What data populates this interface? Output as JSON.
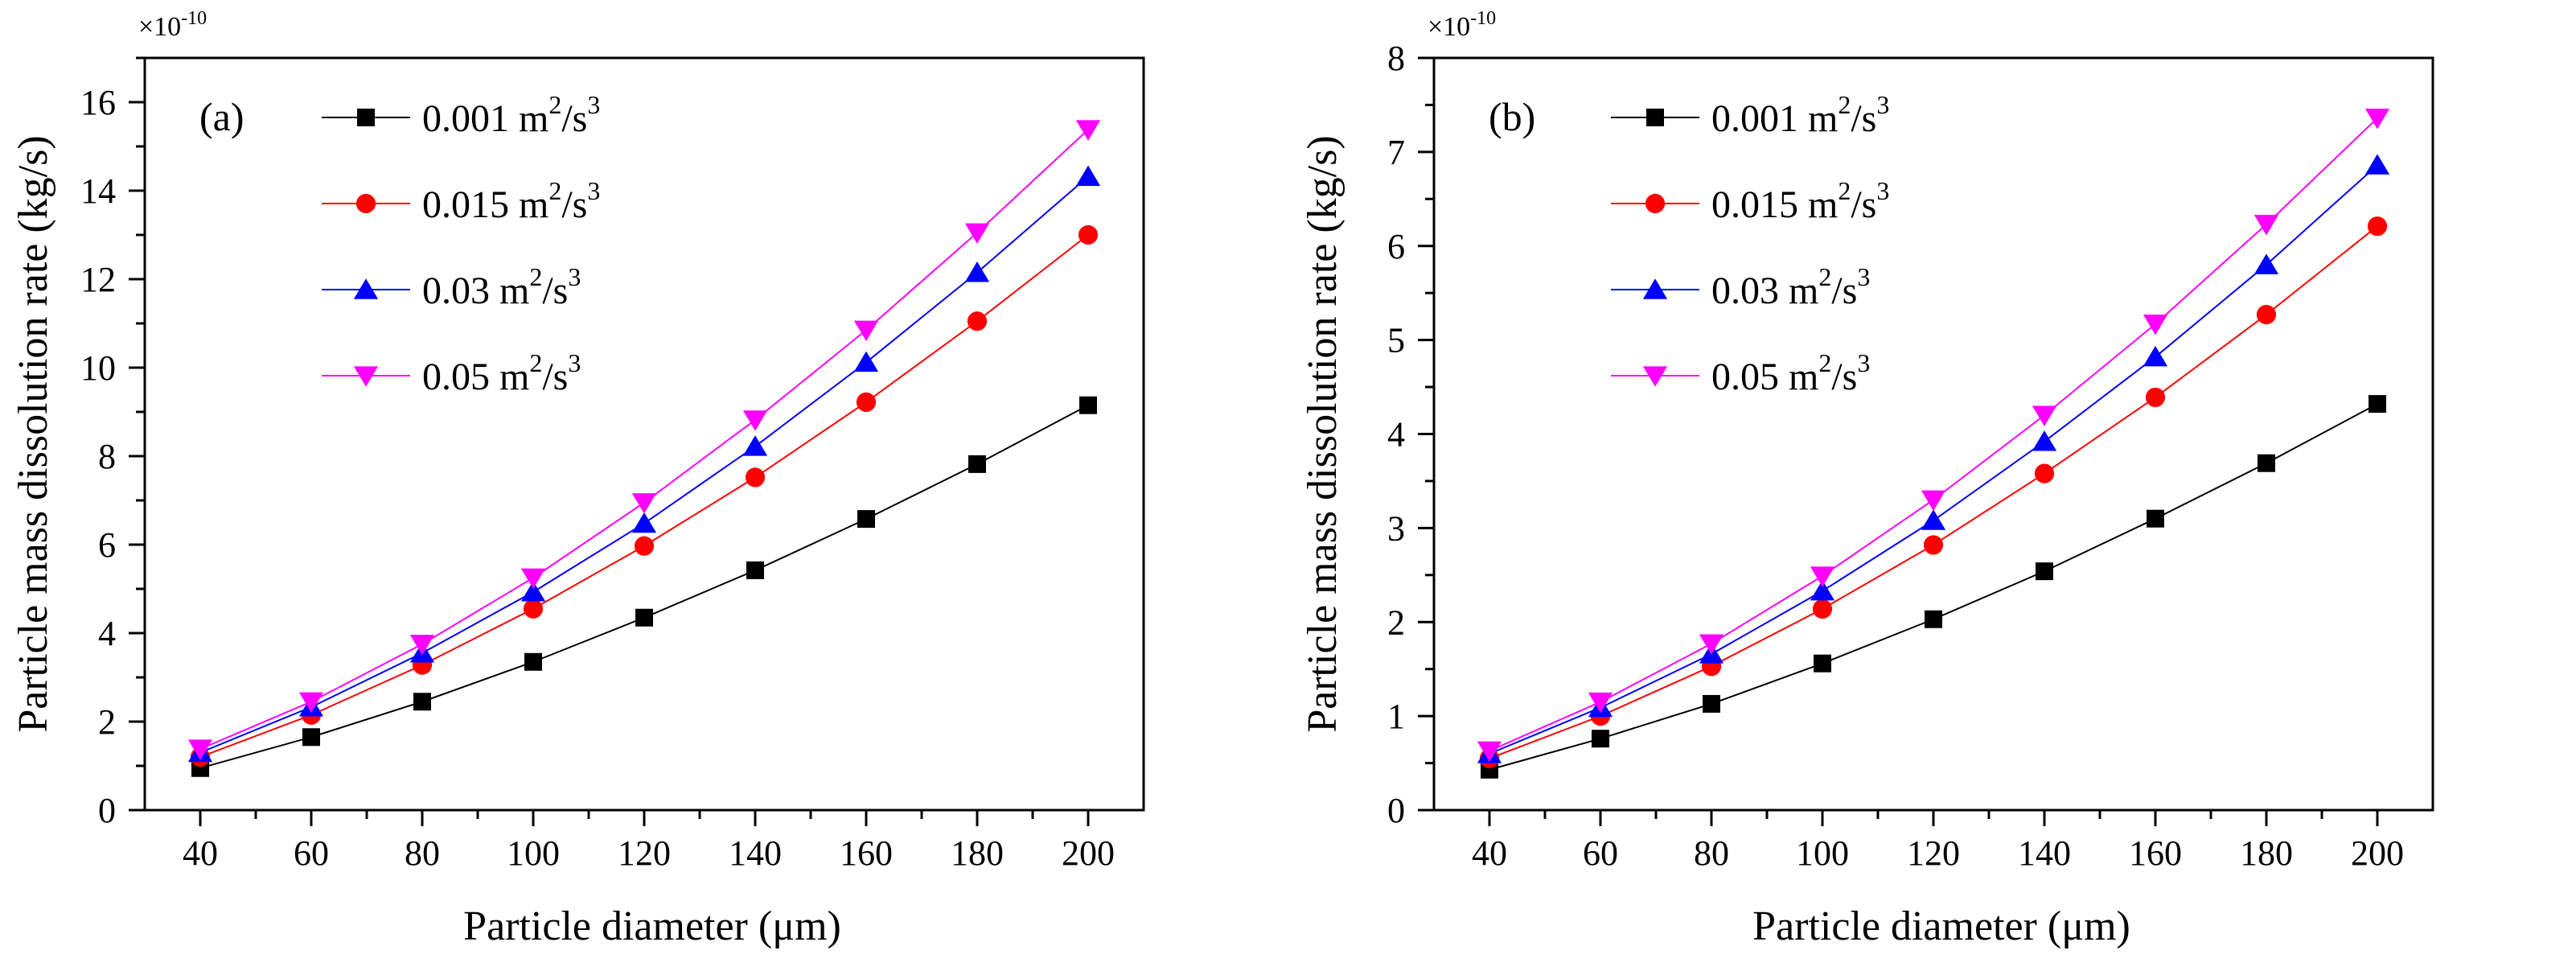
{
  "chart_data": [
    {
      "type": "line",
      "panel_label": "(a)",
      "xlabel": "Particle diameter (μm)",
      "ylabel": "Particle mass dissolution rate (kg/s)",
      "y_multiplier": "×10",
      "y_multiplier_exp": "-10",
      "x": [
        40,
        60,
        80,
        100,
        120,
        140,
        160,
        180,
        200
      ],
      "xlim": [
        30,
        210
      ],
      "ylim": [
        0,
        17
      ],
      "xticks": [
        40,
        60,
        80,
        100,
        120,
        140,
        160,
        180,
        200
      ],
      "yticks": [
        0,
        2,
        4,
        6,
        8,
        10,
        12,
        14,
        16
      ],
      "legend_position": "top-left",
      "series": [
        {
          "name": "0.001 m2/s3",
          "name_base": "0.001 m",
          "marker": "square",
          "color": "#000000",
          "values": [
            0.95,
            1.65,
            2.45,
            3.35,
            4.35,
            5.42,
            6.58,
            7.82,
            9.15
          ]
        },
        {
          "name": "0.015 m2/s3",
          "name_base": "0.015 m",
          "marker": "circle",
          "color": "#ff0000",
          "values": [
            1.2,
            2.15,
            3.28,
            4.55,
            5.97,
            7.52,
            9.22,
            11.05,
            13.0
          ]
        },
        {
          "name": "0.03 m2/s3",
          "name_base": "0.03 m",
          "marker": "triangle-up",
          "color": "#0000ff",
          "values": [
            1.3,
            2.33,
            3.55,
            4.93,
            6.48,
            8.22,
            10.12,
            12.15,
            14.32
          ]
        },
        {
          "name": "0.05 m2/s3",
          "name_base": "0.05 m",
          "marker": "triangle-down",
          "color": "#ff00ff",
          "values": [
            1.38,
            2.45,
            3.75,
            5.25,
            6.95,
            8.82,
            10.85,
            13.05,
            15.38
          ]
        }
      ]
    },
    {
      "type": "line",
      "panel_label": "(b)",
      "xlabel": "Particle diameter (μm)",
      "ylabel": "Particle mass dissolution rate (kg/s)",
      "y_multiplier": "×10",
      "y_multiplier_exp": "-10",
      "x": [
        40,
        60,
        80,
        100,
        120,
        140,
        160,
        180,
        200
      ],
      "xlim": [
        30,
        210
      ],
      "ylim": [
        0,
        8
      ],
      "xticks": [
        40,
        60,
        80,
        100,
        120,
        140,
        160,
        180,
        200
      ],
      "yticks": [
        0,
        1,
        2,
        3,
        4,
        5,
        6,
        7,
        8
      ],
      "legend_position": "top-left",
      "series": [
        {
          "name": "0.001 m2/s3",
          "name_base": "0.001 m",
          "marker": "square",
          "color": "#000000",
          "values": [
            0.43,
            0.76,
            1.13,
            1.56,
            2.03,
            2.54,
            3.1,
            3.69,
            4.32
          ]
        },
        {
          "name": "0.015 m2/s3",
          "name_base": "0.015 m",
          "marker": "circle",
          "color": "#ff0000",
          "values": [
            0.55,
            1.0,
            1.53,
            2.14,
            2.82,
            3.58,
            4.39,
            5.27,
            6.21
          ]
        },
        {
          "name": "0.03 m2/s3",
          "name_base": "0.03 m",
          "marker": "triangle-up",
          "color": "#0000ff",
          "values": [
            0.6,
            1.09,
            1.66,
            2.33,
            3.08,
            3.92,
            4.82,
            5.8,
            6.86
          ]
        },
        {
          "name": "0.05 m2/s3",
          "name_base": "0.05 m",
          "marker": "triangle-down",
          "color": "#ff00ff",
          "values": [
            0.63,
            1.15,
            1.77,
            2.49,
            3.3,
            4.2,
            5.17,
            6.23,
            7.36
          ]
        }
      ]
    }
  ]
}
